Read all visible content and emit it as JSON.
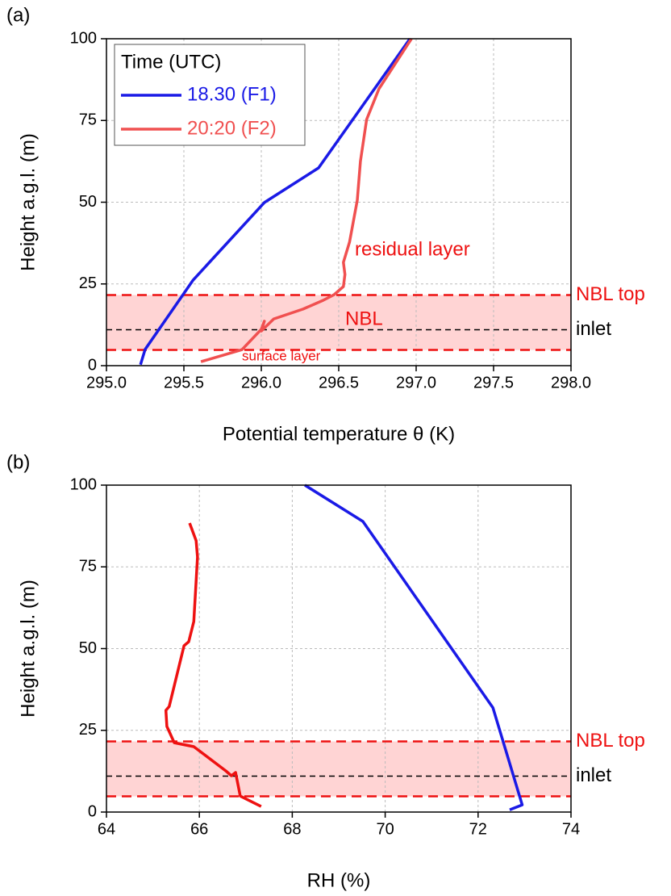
{
  "chart_data": [
    {
      "type": "line",
      "panel_label": "(a)",
      "x_label": "Potential temperature θ (K)",
      "y_label": "Height a.g.l. (m)",
      "xlim": [
        295.0,
        298.0
      ],
      "xticks": [
        {
          "value": 295.0,
          "label": "295.0"
        },
        {
          "value": 295.5,
          "label": "295.5"
        },
        {
          "value": 296.0,
          "label": "296.0"
        },
        {
          "value": 296.5,
          "label": "296.5"
        },
        {
          "value": 297.0,
          "label": "297.0"
        },
        {
          "value": 297.5,
          "label": "297.5"
        },
        {
          "value": 298.0,
          "label": "298.0"
        }
      ],
      "ylim": [
        0,
        100
      ],
      "yticks": [
        0,
        25,
        50,
        75,
        100
      ],
      "grid": true,
      "legend_title": "Time (UTC)",
      "legend": "upper left",
      "series": [
        {
          "name": "18.30 (F1)",
          "color": "#1a1ae6",
          "x": [
            295.22,
            295.25,
            295.56,
            296.02,
            296.37,
            296.96
          ],
          "values": [
            0.3,
            5,
            26.2,
            49.9,
            60.5,
            100
          ]
        },
        {
          "name": "20:20 (F2)",
          "color": "#f05050",
          "x": [
            295.61,
            295.875,
            295.96,
            296.0,
            296.02,
            296.0,
            296.08,
            296.27,
            296.4,
            296.47,
            296.53,
            296.54,
            296.53,
            296.57,
            296.62,
            296.64,
            296.68,
            296.76,
            296.97
          ],
          "values": [
            1.2,
            4.9,
            9.1,
            11.1,
            13.6,
            10.6,
            14.3,
            17.3,
            20,
            21.7,
            24.2,
            27.9,
            31.6,
            37.8,
            50.6,
            62.5,
            75.3,
            84.7,
            100
          ]
        }
      ],
      "nbl_bottom": 4.8,
      "nbl_top": 21.6,
      "inlet": 11,
      "nbl_top_label": "NBL top",
      "inlet_label": "inlet",
      "annotations": [
        "residual layer",
        "NBL",
        "surface layer"
      ]
    },
    {
      "type": "line",
      "panel_label": "(b)",
      "x_label": "RH (%)",
      "y_label": "Height a.g.l. (m)",
      "xlim": [
        64,
        74
      ],
      "xticks": [
        64,
        66,
        68,
        70,
        72,
        74
      ],
      "ylim": [
        0,
        100
      ],
      "yticks": [
        0,
        25,
        50,
        75,
        100
      ],
      "grid": true,
      "series": [
        {
          "color": "#1a1ae6",
          "x": [
            72.68,
            72.95,
            72.32,
            69.52,
            68.27
          ],
          "values": [
            0.7,
            2.2,
            31.9,
            88.9,
            100
          ]
        },
        {
          "color": "#ee1111",
          "x": [
            67.33,
            66.88,
            66.78,
            66.69,
            66.57,
            65.88,
            65.46,
            65.3,
            65.28,
            65.35,
            65.67,
            65.77,
            65.88,
            65.96,
            65.93,
            65.79
          ],
          "values": [
            1.7,
            4.9,
            12.1,
            11.1,
            12.6,
            20,
            21.2,
            26.2,
            31.1,
            32.3,
            50.9,
            52.1,
            58.3,
            78,
            83,
            88.4
          ]
        }
      ],
      "nbl_bottom": 4.8,
      "nbl_top": 21.6,
      "inlet": 11,
      "nbl_top_label": "NBL top",
      "inlet_label": "inlet"
    }
  ]
}
